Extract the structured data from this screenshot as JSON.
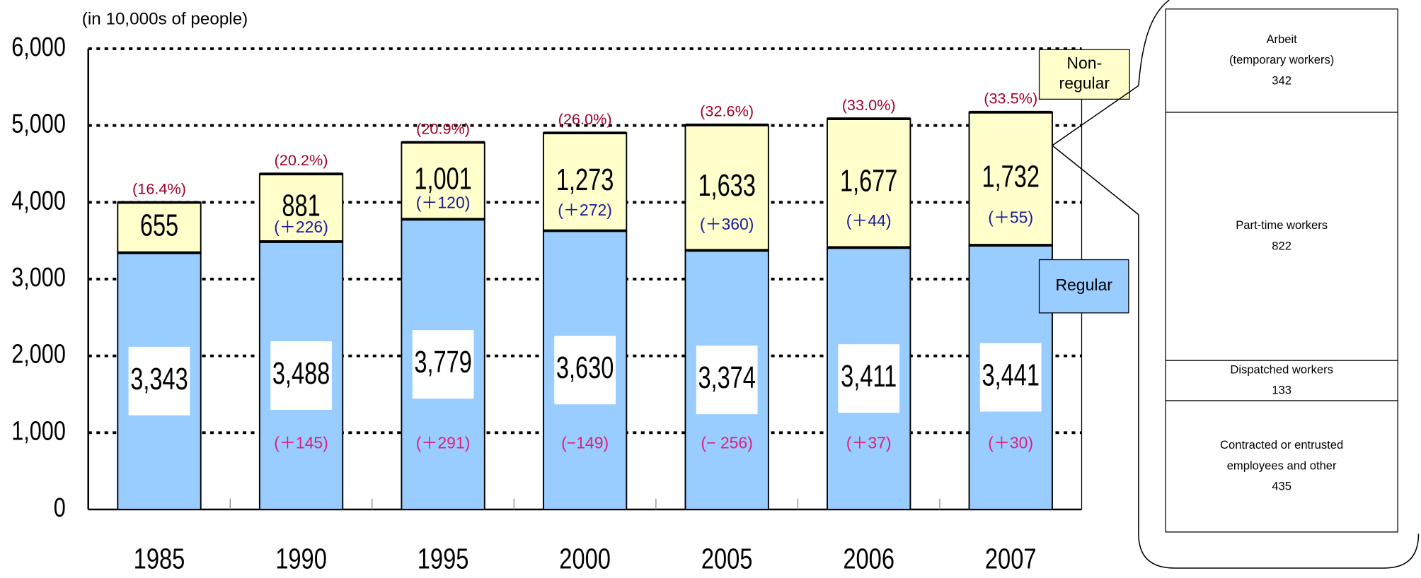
{
  "chart_data": {
    "type": "stacked_bar",
    "y_axis_label": "(in 10,000s of people)",
    "categories": [
      "1985",
      "1990",
      "1995",
      "2000",
      "2005",
      "2006",
      "2007"
    ],
    "series": [
      {
        "name": "Regular",
        "color": "#99ccff",
        "values": [
          3343,
          3488,
          3779,
          3630,
          3374,
          3411,
          3441
        ],
        "value_labels": [
          "3,343",
          "3,488",
          "3,779",
          "3,630",
          "3,374",
          "3,411",
          "3,441"
        ],
        "change_labels": [
          null,
          "(＋145)",
          "(＋291)",
          "(−149)",
          "(− 256)",
          "(＋37)",
          "(＋30)"
        ],
        "change_color": "#e0207a"
      },
      {
        "name": "Non-regular",
        "color": "#ffffcc",
        "values": [
          655,
          881,
          1001,
          1273,
          1633,
          1677,
          1732
        ],
        "value_labels": [
          "655",
          "881",
          "1,001",
          "1,273",
          "1,633",
          "1,677",
          "1,732"
        ],
        "change_labels": [
          null,
          "(＋226)",
          "(＋120)",
          "(＋272)",
          "(＋360)",
          "(＋44)",
          "(＋55)"
        ],
        "change_color": "#1a1aa0"
      }
    ],
    "share_labels": [
      "(16.4%)",
      "(20.2%)",
      "(20.9%)",
      "(26.0%)",
      "(32.6%)",
      "(33.0%)",
      "(33.5%)"
    ],
    "share_color": "#a0002a",
    "ylim": [
      0,
      6000
    ],
    "yticks": [
      0,
      {
        "value": 1000,
        "label": "1,000"
      },
      {
        "value": 2000,
        "label": "2,000"
      },
      {
        "value": 3000,
        "label": "3,000"
      },
      {
        "value": 4000,
        "label": "4,000"
      },
      {
        "value": 5000,
        "label": "5,000"
      },
      {
        "value": 6000,
        "label": "6,000"
      }
    ],
    "grid": true,
    "breakdown": [
      {
        "label_lines": [
          "Arbeit",
          "(temporary workers)"
        ],
        "value": 342
      },
      {
        "label_lines": [
          "Part-time workers"
        ],
        "value": 822
      },
      {
        "label_lines": [
          "Dispatched workers"
        ],
        "value": 133
      },
      {
        "label_lines": [
          "Contracted or entrusted",
          "employees and other"
        ],
        "value": 435
      }
    ]
  }
}
